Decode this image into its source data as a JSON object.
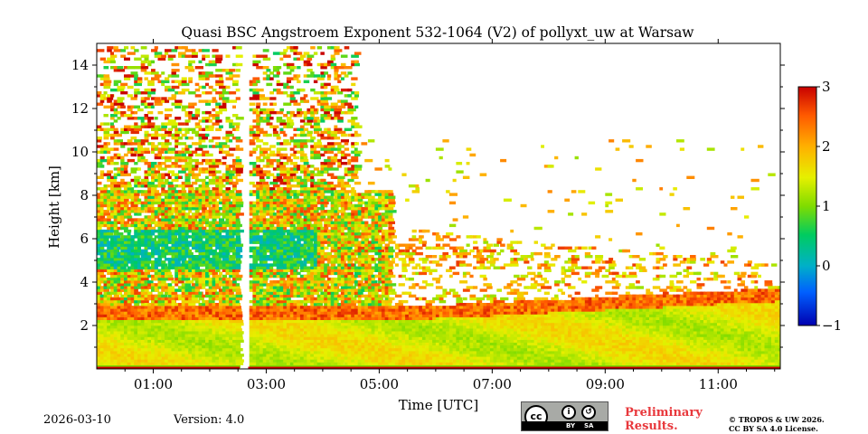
{
  "chart_data": {
    "type": "heatmap",
    "title": "Quasi BSC Angstroem Exponent 532-1064 (V2) of pollyxt_uw at Warsaw",
    "xlabel": "Time [UTC]",
    "ylabel": "Height [km]",
    "x_range_utc_hours": [
      0.0,
      12.1
    ],
    "ylim": [
      0,
      15
    ],
    "xticks": [
      1,
      3,
      5,
      7,
      9,
      11
    ],
    "xtick_labels": [
      "01:00",
      "03:00",
      "05:00",
      "07:00",
      "09:00",
      "11:00"
    ],
    "yticks": [
      2,
      4,
      6,
      8,
      10,
      12,
      14
    ],
    "ytick_labels": [
      "2",
      "4",
      "6",
      "8",
      "10",
      "12",
      "14"
    ],
    "colorbar": {
      "range": [
        -1,
        3
      ],
      "ticks": [
        3,
        2,
        1,
        0,
        -1
      ],
      "tick_labels": [
        "3",
        "2",
        "1",
        "0",
        "−1"
      ],
      "colormap": "jet"
    },
    "data_gap_utc_hours": [
      2.53,
      2.68
    ],
    "layers": [
      {
        "name": "boundary layer",
        "height_km": [
          0,
          2.5
        ],
        "value_approx": 1.6,
        "until_hour": 12.1
      },
      {
        "name": "aerosol layers",
        "height_km": [
          2.5,
          8
        ],
        "value_approx": 1.5,
        "until_hour": 5.2
      },
      {
        "name": "low-value aerosol patch",
        "height_km": [
          4.5,
          6.2
        ],
        "value_approx": 0.2,
        "until_hour": 3.8
      },
      {
        "name": "noisy upper region",
        "height_km": [
          8,
          14.8
        ],
        "value_approx": 1.8,
        "until_hour": 4.6
      }
    ]
  },
  "footer": {
    "date": "2026-03-10",
    "version": "Version: 4.0",
    "preliminary": "Preliminary\nResults.",
    "copyright": "© TROPOS & UW 2026.\nCC BY SA 4.0 License.",
    "license_badge": {
      "cc": "cc",
      "by": "BY",
      "sa": "SA"
    }
  },
  "colors": {
    "gap": "#ffffff",
    "frame": "#000000",
    "preliminary": "#e8383c"
  }
}
